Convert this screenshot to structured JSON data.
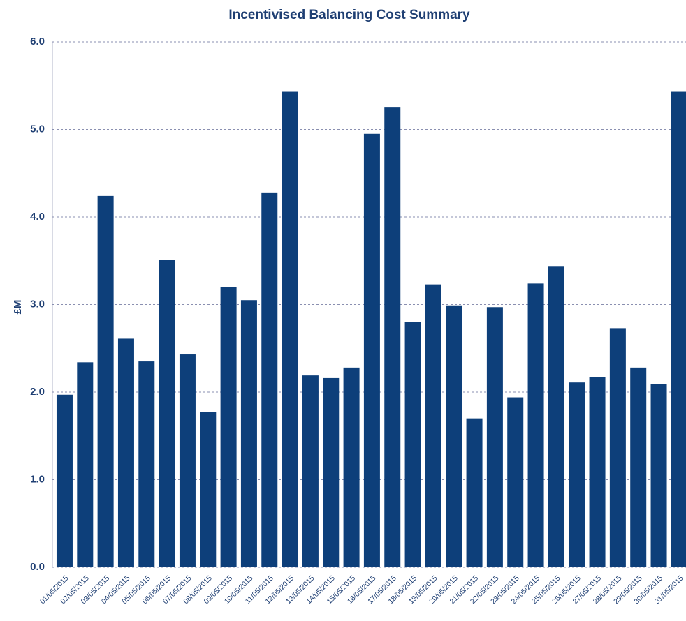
{
  "chart_data": {
    "type": "bar",
    "title": "Incentivised Balancing Cost Summary",
    "y_label": "£M",
    "categories": [
      "01/05/2015",
      "02/05/2015",
      "03/05/2015",
      "04/05/2015",
      "05/05/2015",
      "06/05/2015",
      "07/05/2015",
      "08/05/2015",
      "09/05/2015",
      "10/05/2015",
      "11/05/2015",
      "12/05/2015",
      "13/05/2015",
      "14/05/2015",
      "15/05/2015",
      "16/05/2015",
      "17/05/2015",
      "18/05/2015",
      "19/05/2015",
      "20/05/2015",
      "21/05/2015",
      "22/05/2015",
      "23/05/2015",
      "24/05/2015",
      "25/05/2015",
      "26/05/2015",
      "27/05/2015",
      "28/05/2015",
      "29/05/2015",
      "30/05/2015",
      "31/05/2015"
    ],
    "values": [
      1.97,
      2.34,
      4.24,
      2.61,
      2.35,
      3.51,
      2.43,
      1.77,
      3.2,
      3.05,
      4.28,
      5.43,
      2.19,
      2.16,
      2.28,
      4.95,
      5.25,
      2.8,
      3.23,
      2.99,
      1.7,
      2.97,
      1.94,
      3.24,
      3.44,
      2.11,
      2.17,
      2.73,
      2.28,
      2.09,
      5.43
    ],
    "color": "#0d3f7a",
    "ylim": [
      0,
      6
    ],
    "yticks": [
      {
        "value": 0,
        "label": "0.0"
      },
      {
        "value": 1,
        "label": "1.0"
      },
      {
        "value": 2,
        "label": "2.0"
      },
      {
        "value": 3,
        "label": "3.0"
      },
      {
        "value": 4,
        "label": "4.0"
      },
      {
        "value": 5,
        "label": "5.0"
      },
      {
        "value": 6,
        "label": "6.0"
      }
    ],
    "grid": true
  }
}
